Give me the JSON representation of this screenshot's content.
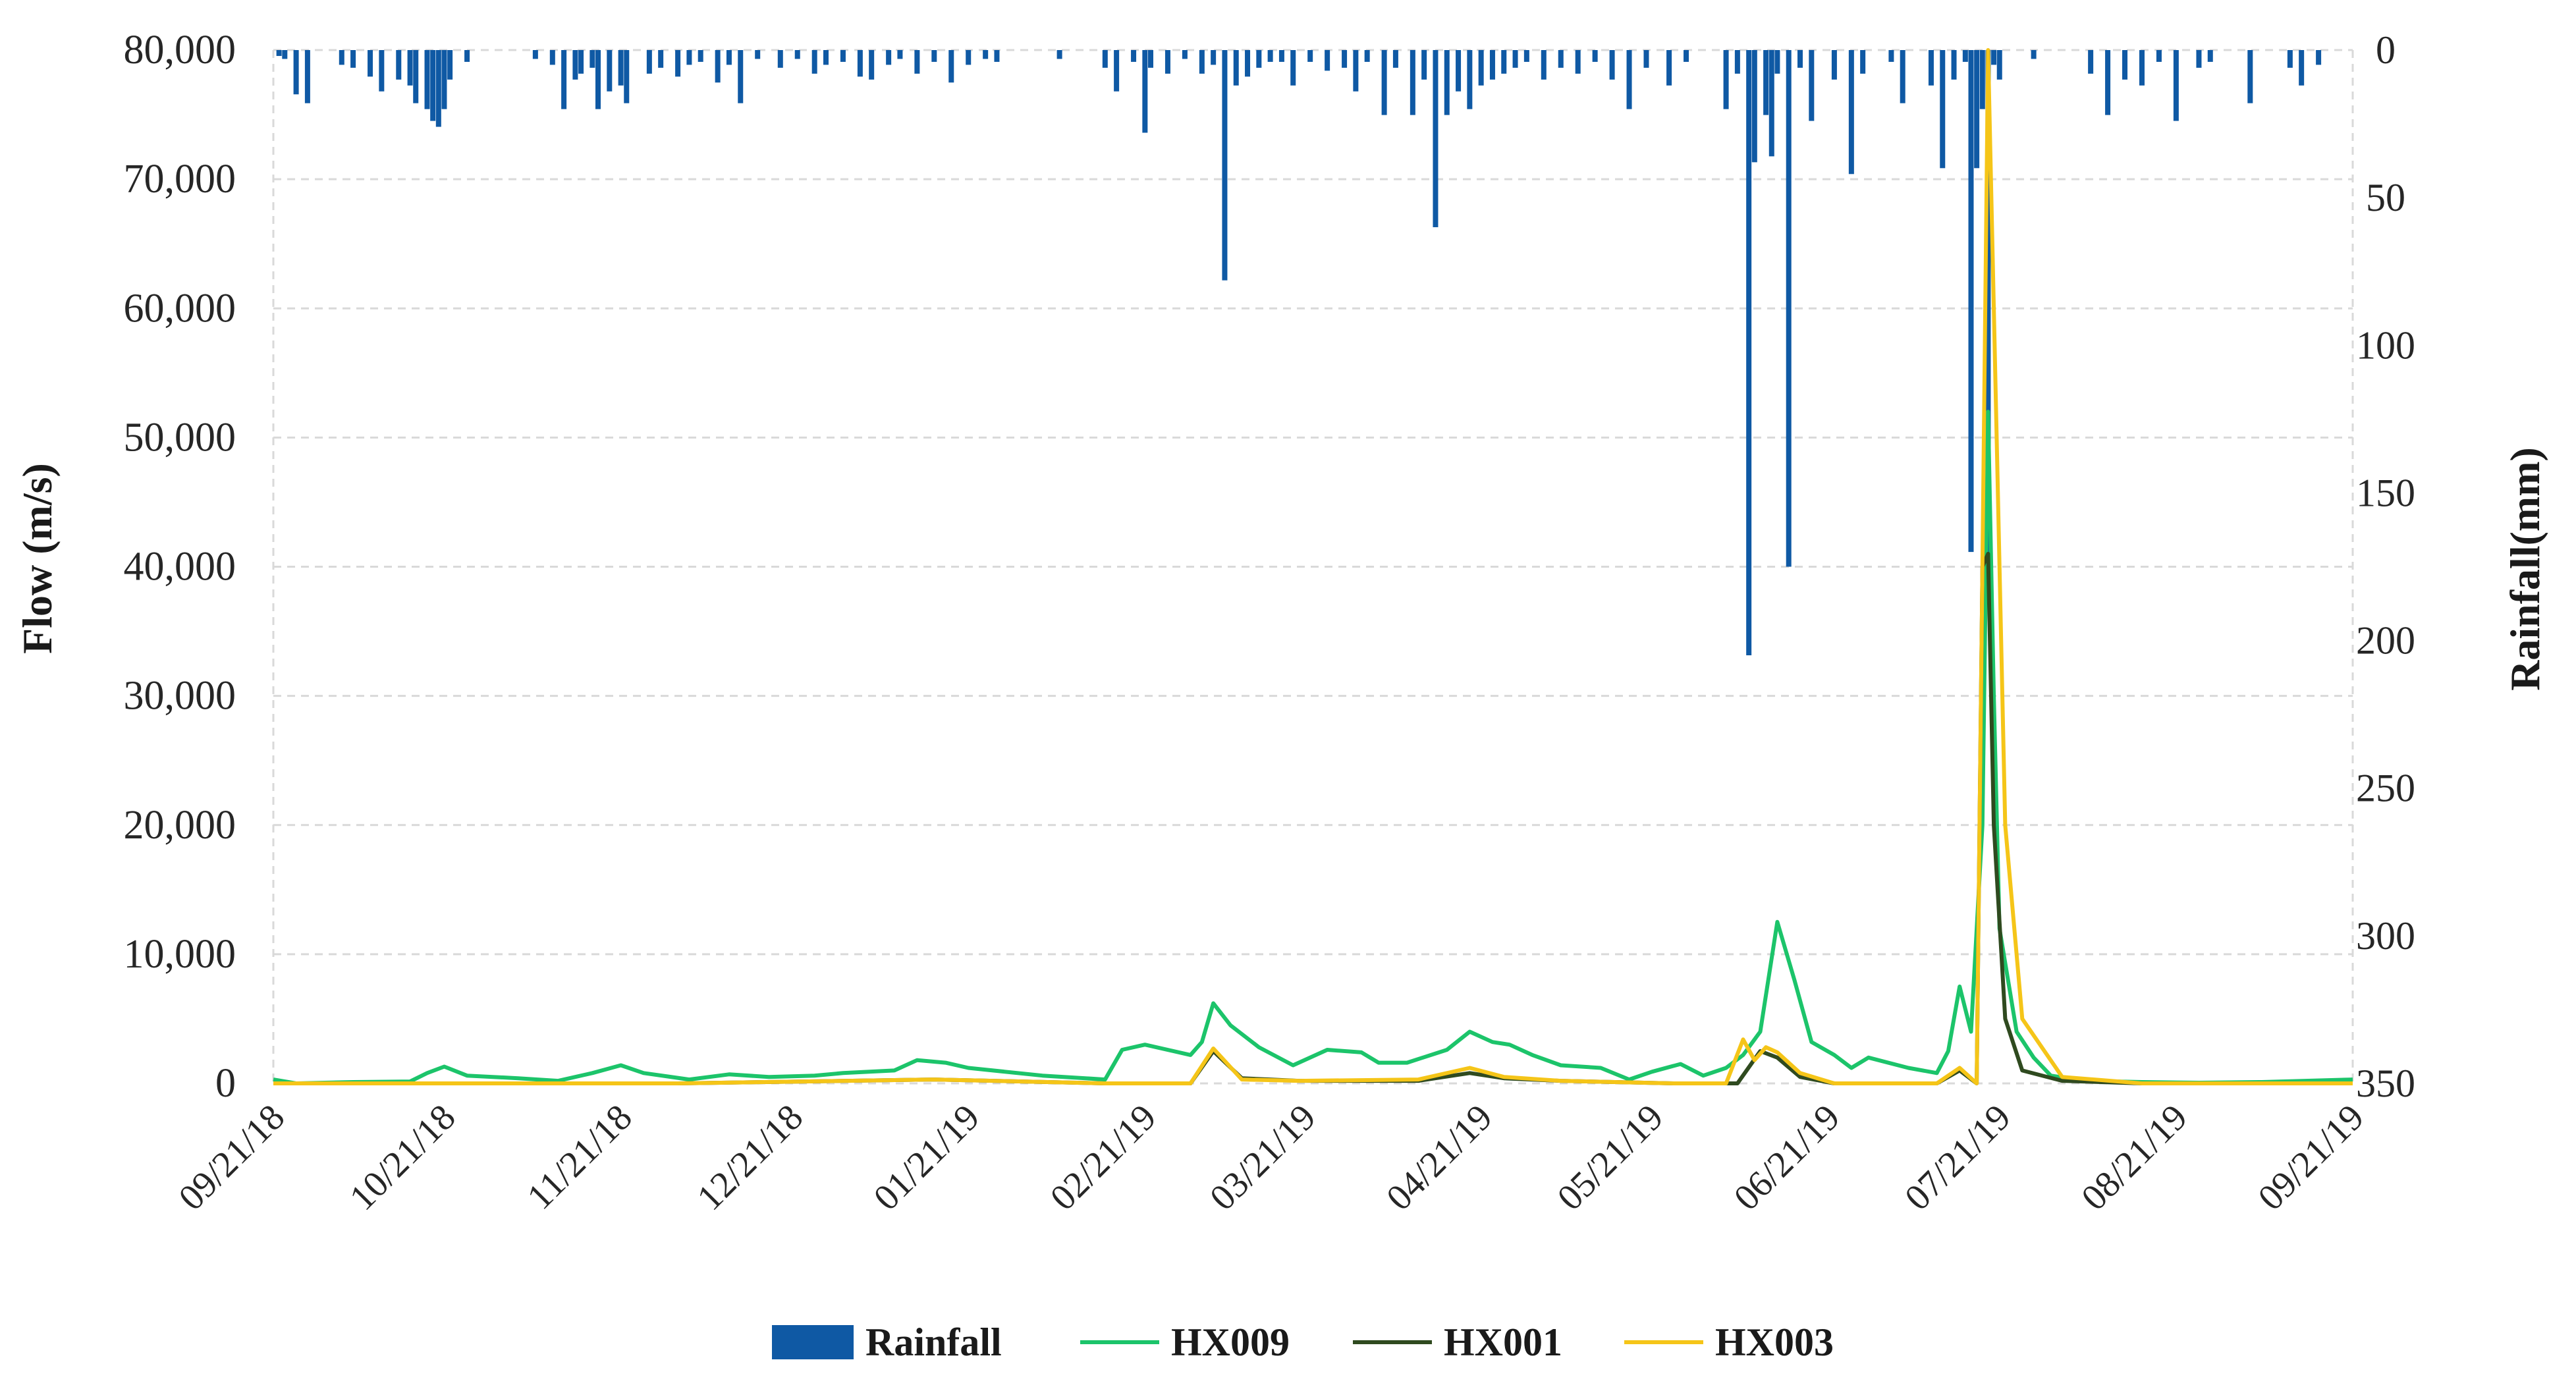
{
  "chart_data": {
    "type": "line",
    "title": "",
    "ylabel_left": "Flow (m/s)",
    "ylabel_right": "Rainfall(mm)",
    "ylim_left": [
      0,
      80000
    ],
    "ylim_right": [
      350,
      0
    ],
    "yticks_left": [
      "80,000",
      "70,000",
      "60,000",
      "50,000",
      "40,000",
      "30,000",
      "20,000",
      "10,000",
      "0"
    ],
    "yticks_right": [
      "0",
      "50",
      "100",
      "150",
      "200",
      "250",
      "300",
      "350"
    ],
    "xlim": [
      "09/21/18",
      "09/21/19"
    ],
    "xticks": [
      "09/21/18",
      "10/21/18",
      "11/21/18",
      "12/21/18",
      "01/21/19",
      "02/21/19",
      "03/21/19",
      "04/21/19",
      "05/21/19",
      "06/21/19",
      "07/21/19",
      "08/21/19",
      "09/21/19"
    ],
    "grid": "horizontal dashed",
    "legend_position": "bottom",
    "legend": [
      "Rainfall",
      "HX009",
      "HX001",
      "HX003"
    ],
    "colors": {
      "Rainfall": "#0f59a4",
      "HX009": "#1cc46a",
      "HX001": "#2f4a1f",
      "HX003": "#f5c518"
    },
    "series": [
      {
        "name": "Rainfall",
        "type": "bar",
        "axis": "right",
        "x": [
          "2018-09-22",
          "2018-09-23",
          "2018-09-25",
          "2018-09-27",
          "2018-10-03",
          "2018-10-05",
          "2018-10-08",
          "2018-10-10",
          "2018-10-13",
          "2018-10-15",
          "2018-10-16",
          "2018-10-18",
          "2018-10-19",
          "2018-10-20",
          "2018-10-21",
          "2018-10-22",
          "2018-10-25",
          "2018-11-06",
          "2018-11-09",
          "2018-11-11",
          "2018-11-13",
          "2018-11-14",
          "2018-11-16",
          "2018-11-17",
          "2018-11-19",
          "2018-11-21",
          "2018-11-22",
          "2018-11-26",
          "2018-11-28",
          "2018-12-01",
          "2018-12-03",
          "2018-12-05",
          "2018-12-08",
          "2018-12-10",
          "2018-12-12",
          "2018-12-15",
          "2018-12-19",
          "2018-12-22",
          "2018-12-25",
          "2018-12-27",
          "2018-12-30",
          "2019-01-02",
          "2019-01-04",
          "2019-01-07",
          "2019-01-09",
          "2019-01-12",
          "2019-01-15",
          "2019-01-18",
          "2019-01-21",
          "2019-01-24",
          "2019-01-26",
          "2019-02-06",
          "2019-02-14",
          "2019-02-16",
          "2019-02-19",
          "2019-02-21",
          "2019-02-22",
          "2019-02-25",
          "2019-02-28",
          "2019-03-03",
          "2019-03-05",
          "2019-03-07",
          "2019-03-09",
          "2019-03-11",
          "2019-03-13",
          "2019-03-15",
          "2019-03-17",
          "2019-03-19",
          "2019-03-22",
          "2019-03-25",
          "2019-03-28",
          "2019-03-30",
          "2019-04-01",
          "2019-04-04",
          "2019-04-06",
          "2019-04-09",
          "2019-04-11",
          "2019-04-13",
          "2019-04-15",
          "2019-04-17",
          "2019-04-19",
          "2019-04-21",
          "2019-04-23",
          "2019-04-25",
          "2019-04-27",
          "2019-04-29",
          "2019-05-02",
          "2019-05-05",
          "2019-05-08",
          "2019-05-11",
          "2019-05-14",
          "2019-05-17",
          "2019-05-20",
          "2019-05-24",
          "2019-05-27",
          "2019-06-03",
          "2019-06-05",
          "2019-06-07",
          "2019-06-08",
          "2019-06-10",
          "2019-06-11",
          "2019-06-12",
          "2019-06-14",
          "2019-06-16",
          "2019-06-18",
          "2019-06-22",
          "2019-06-25",
          "2019-06-27",
          "2019-07-02",
          "2019-07-04",
          "2019-07-09",
          "2019-07-11",
          "2019-07-13",
          "2019-07-15",
          "2019-07-16",
          "2019-07-17",
          "2019-07-18",
          "2019-07-19",
          "2019-07-20",
          "2019-07-21",
          "2019-07-27",
          "2019-08-06",
          "2019-08-09",
          "2019-08-12",
          "2019-08-15",
          "2019-08-18",
          "2019-08-21",
          "2019-08-25",
          "2019-08-27",
          "2019-09-03",
          "2019-09-10",
          "2019-09-12",
          "2019-09-15"
        ],
        "values": [
          2,
          3,
          15,
          18,
          5,
          6,
          9,
          14,
          10,
          12,
          18,
          20,
          24,
          26,
          20,
          10,
          4,
          3,
          5,
          20,
          10,
          8,
          6,
          20,
          14,
          12,
          18,
          8,
          6,
          9,
          5,
          4,
          11,
          5,
          18,
          3,
          6,
          3,
          8,
          5,
          4,
          9,
          10,
          5,
          3,
          8,
          4,
          11,
          5,
          3,
          4,
          3,
          6,
          14,
          4,
          28,
          6,
          8,
          3,
          8,
          5,
          78,
          12,
          9,
          6,
          4,
          4,
          12,
          4,
          7,
          6,
          14,
          4,
          22,
          6,
          22,
          10,
          60,
          22,
          14,
          20,
          12,
          10,
          8,
          6,
          4,
          10,
          6,
          8,
          4,
          10,
          20,
          6,
          12,
          4,
          20,
          8,
          205,
          38,
          22,
          36,
          8,
          175,
          6,
          24,
          10,
          42,
          8,
          4,
          18,
          12,
          40,
          10,
          4,
          170,
          40,
          20,
          175,
          5,
          10,
          3,
          8,
          22,
          10,
          12,
          4,
          24,
          6,
          4,
          18,
          6,
          12,
          5
        ]
      },
      {
        "name": "HX009",
        "type": "line",
        "axis": "left",
        "x": [
          "2018-09-21",
          "2018-09-25",
          "2018-10-05",
          "2018-10-15",
          "2018-10-18",
          "2018-10-21",
          "2018-10-25",
          "2018-11-03",
          "2018-11-10",
          "2018-11-16",
          "2018-11-21",
          "2018-11-25",
          "2018-12-03",
          "2018-12-10",
          "2018-12-17",
          "2018-12-25",
          "2018-12-30",
          "2019-01-08",
          "2019-01-12",
          "2019-01-17",
          "2019-01-21",
          "2019-02-03",
          "2019-02-14",
          "2019-02-17",
          "2019-02-21",
          "2019-03-01",
          "2019-03-03",
          "2019-03-05",
          "2019-03-08",
          "2019-03-13",
          "2019-03-19",
          "2019-03-25",
          "2019-03-31",
          "2019-04-03",
          "2019-04-08",
          "2019-04-15",
          "2019-04-19",
          "2019-04-23",
          "2019-04-26",
          "2019-04-30",
          "2019-05-05",
          "2019-05-12",
          "2019-05-17",
          "2019-05-21",
          "2019-05-26",
          "2019-05-30",
          "2019-06-03",
          "2019-06-06",
          "2019-06-09",
          "2019-06-12",
          "2019-06-15",
          "2019-06-18",
          "2019-06-22",
          "2019-06-25",
          "2019-06-28",
          "2019-07-05",
          "2019-07-10",
          "2019-07-12",
          "2019-07-14",
          "2019-07-16",
          "2019-07-18",
          "2019-07-19",
          "2019-07-20",
          "2019-07-21",
          "2019-07-24",
          "2019-07-27",
          "2019-07-30",
          "2019-08-05",
          "2019-08-15",
          "2019-08-25",
          "2019-09-05",
          "2019-09-21"
        ],
        "values": [
          300,
          0,
          100,
          150,
          800,
          1300,
          600,
          400,
          200,
          800,
          1400,
          800,
          300,
          700,
          500,
          600,
          800,
          1000,
          1800,
          1600,
          1200,
          600,
          300,
          2600,
          3000,
          2200,
          3200,
          6200,
          4500,
          2800,
          1400,
          2600,
          2400,
          1600,
          1600,
          2600,
          4000,
          3200,
          3000,
          2200,
          1400,
          1200,
          300,
          900,
          1500,
          600,
          1200,
          2200,
          4000,
          12500,
          8000,
          3200,
          2200,
          1200,
          2000,
          1200,
          800,
          2500,
          7500,
          4000,
          20000,
          52000,
          30000,
          12000,
          4000,
          2000,
          600,
          200,
          100,
          50,
          100,
          300
        ]
      },
      {
        "name": "HX001",
        "type": "line",
        "axis": "left",
        "x": [
          "2018-09-21",
          "2018-11-01",
          "2018-12-01",
          "2019-01-15",
          "2019-02-14",
          "2019-03-01",
          "2019-03-05",
          "2019-03-10",
          "2019-03-20",
          "2019-04-10",
          "2019-04-19",
          "2019-04-25",
          "2019-05-05",
          "2019-05-25",
          "2019-06-05",
          "2019-06-09",
          "2019-06-12",
          "2019-06-16",
          "2019-06-22",
          "2019-07-10",
          "2019-07-14",
          "2019-07-17",
          "2019-07-18",
          "2019-07-19",
          "2019-07-20",
          "2019-07-22",
          "2019-07-25",
          "2019-08-01",
          "2019-08-15",
          "2019-09-21"
        ],
        "values": [
          0,
          0,
          0,
          300,
          0,
          0,
          2500,
          400,
          200,
          200,
          800,
          400,
          200,
          0,
          0,
          2500,
          2000,
          500,
          0,
          0,
          1000,
          0,
          40000,
          41000,
          20000,
          5000,
          1000,
          200,
          0,
          0
        ]
      },
      {
        "name": "HX003",
        "type": "line",
        "axis": "left",
        "x": [
          "2018-09-21",
          "2018-11-01",
          "2018-12-01",
          "2019-01-15",
          "2019-02-14",
          "2019-03-01",
          "2019-03-05",
          "2019-03-10",
          "2019-03-20",
          "2019-04-10",
          "2019-04-19",
          "2019-04-25",
          "2019-05-05",
          "2019-05-25",
          "2019-06-03",
          "2019-06-06",
          "2019-06-08",
          "2019-06-10",
          "2019-06-12",
          "2019-06-16",
          "2019-06-22",
          "2019-07-10",
          "2019-07-14",
          "2019-07-17",
          "2019-07-18",
          "2019-07-19",
          "2019-07-20",
          "2019-07-22",
          "2019-07-25",
          "2019-08-01",
          "2019-08-15",
          "2019-09-21"
        ],
        "values": [
          0,
          0,
          0,
          300,
          0,
          0,
          2700,
          300,
          200,
          300,
          1200,
          500,
          200,
          0,
          0,
          3400,
          1800,
          2800,
          2400,
          800,
          0,
          0,
          1200,
          0,
          40000,
          80000,
          60000,
          20000,
          5000,
          500,
          0,
          0
        ]
      }
    ]
  }
}
